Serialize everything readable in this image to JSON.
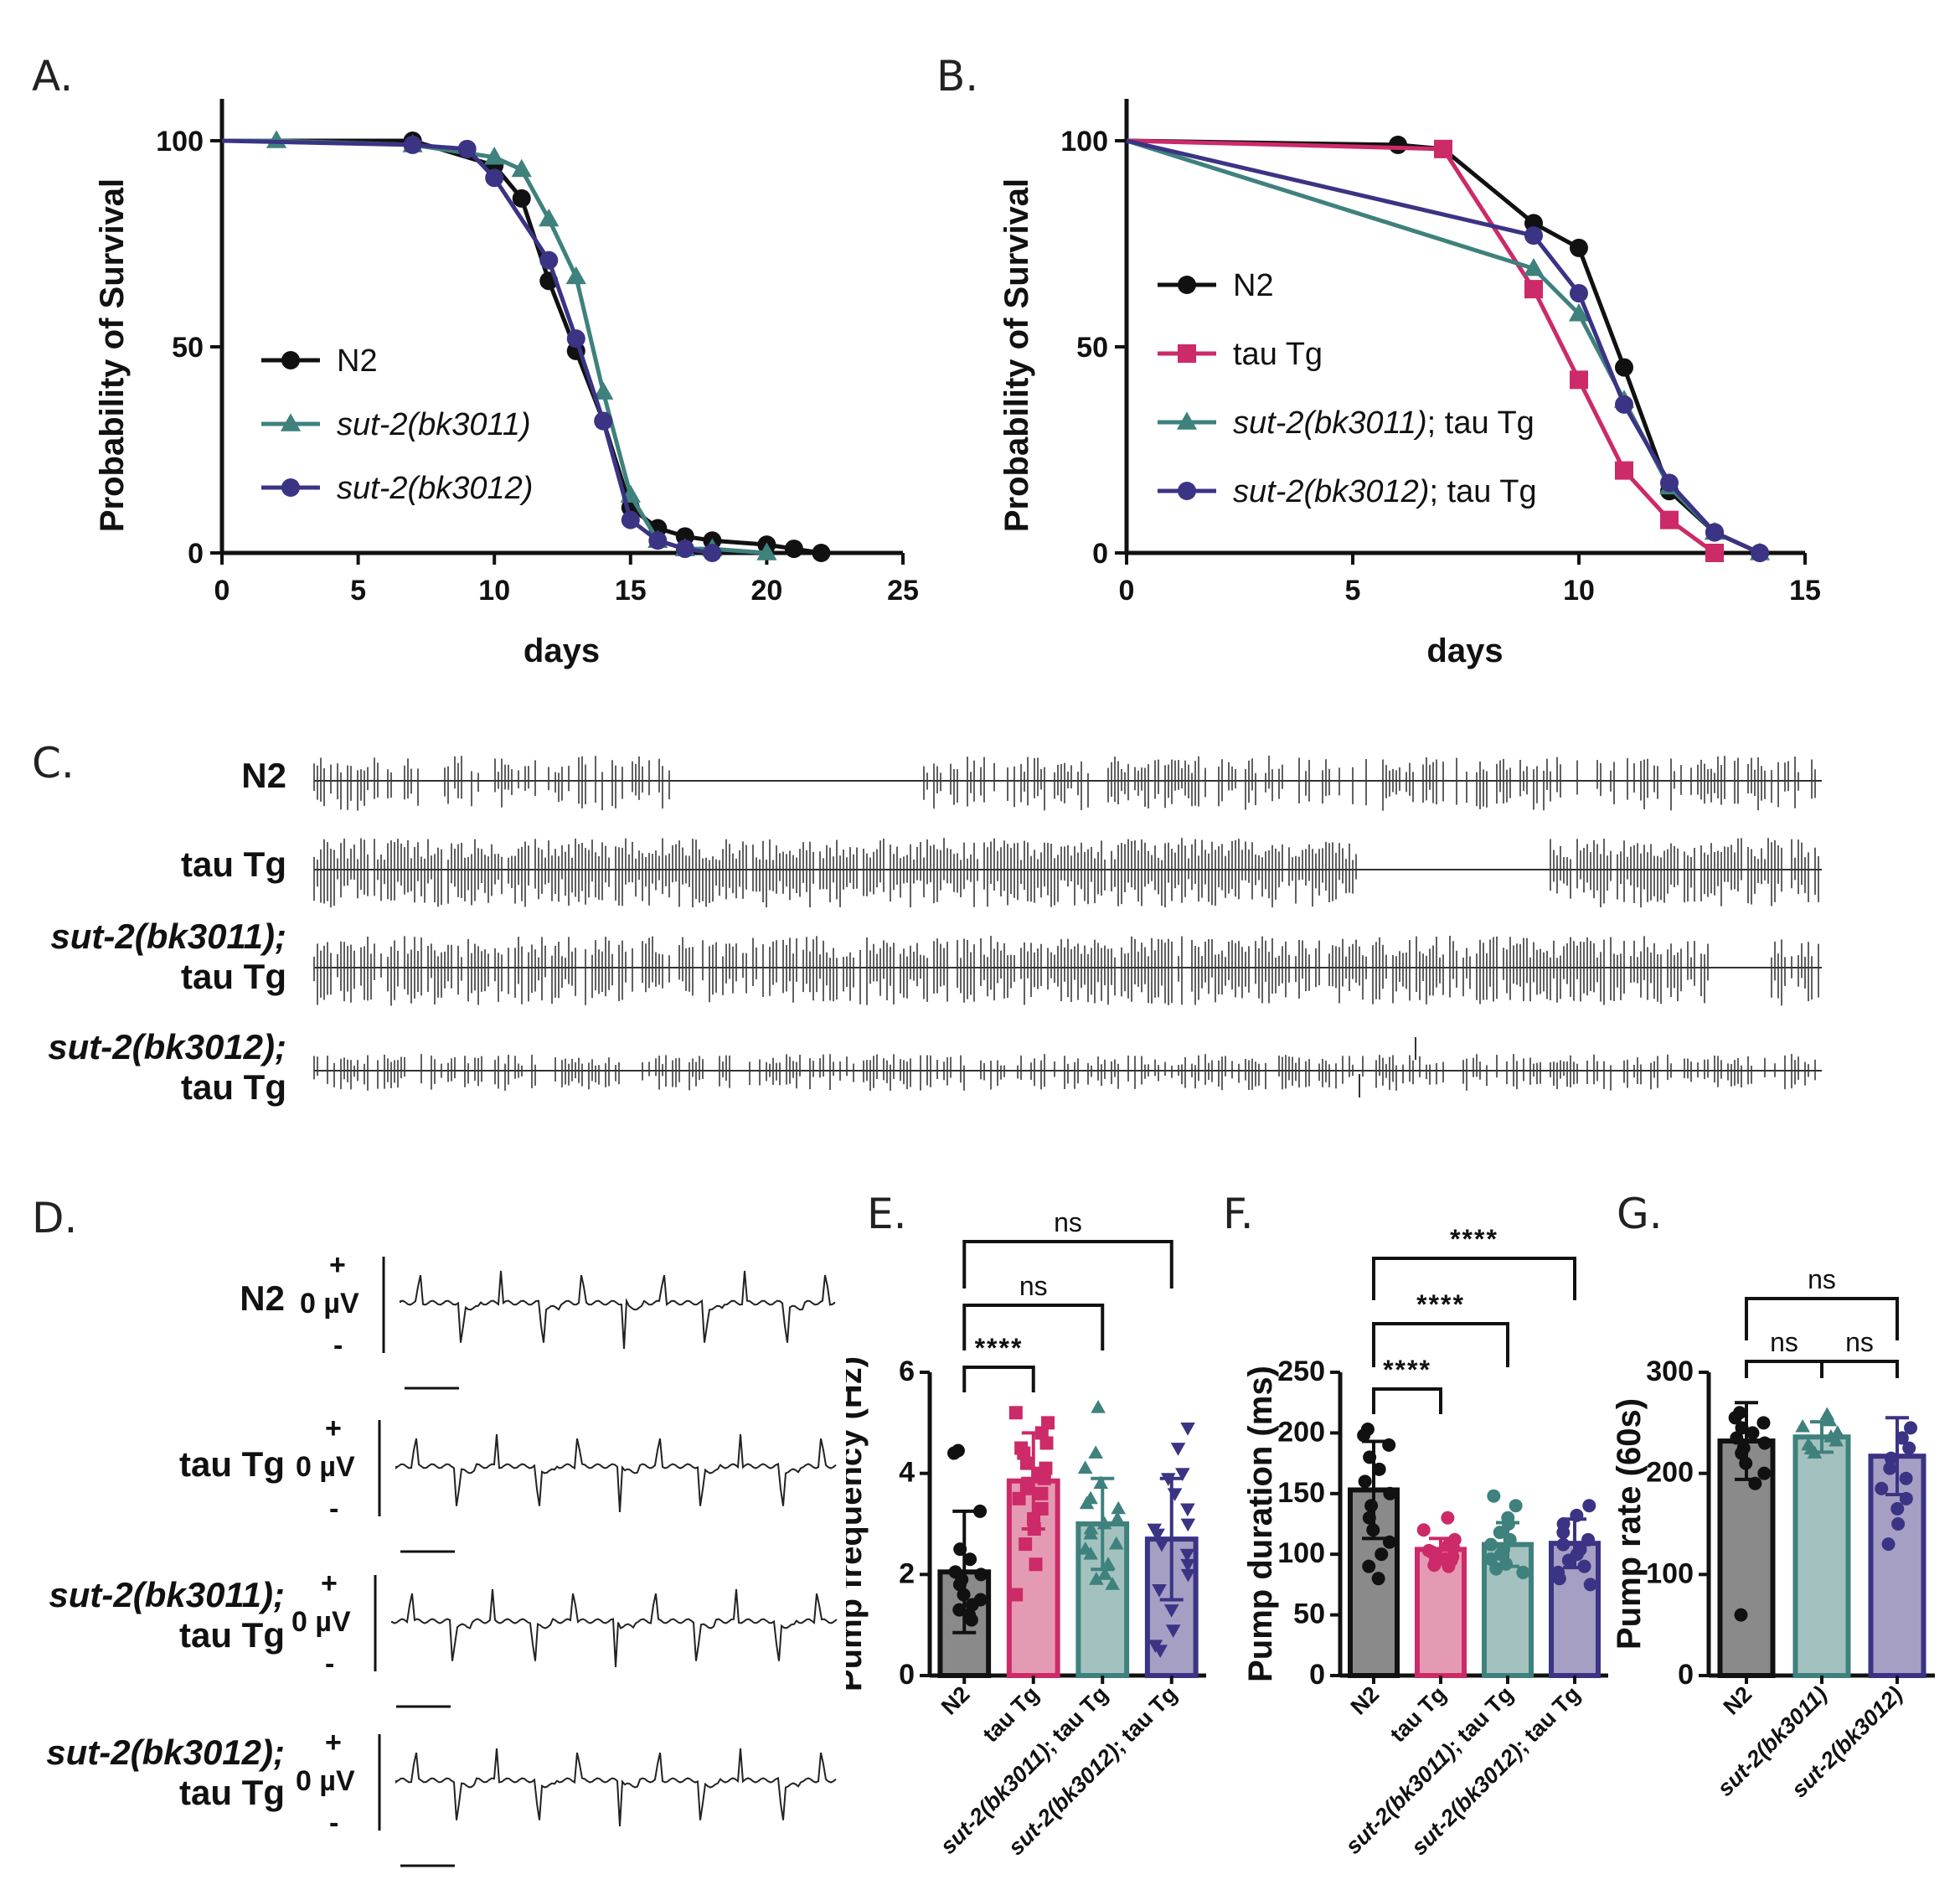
{
  "panel_labels": {
    "a": "A.",
    "b": "B.",
    "c": "C.",
    "d": "D.",
    "e": "E.",
    "f": "F.",
    "g": "G."
  },
  "colors": {
    "N2": "#111111",
    "tauTg": "#cc2a68",
    "bk3011": "#3e817d",
    "bk3012": "#3b3383",
    "tauTg_light": "#e59ab3",
    "bk3011_light": "#a3c2bf",
    "bk3012_light": "#a59fc4",
    "N2_light": "#8a8a8a"
  },
  "chart_data": [
    {
      "id": "A",
      "type": "line",
      "xlabel": "days",
      "ylabel": "Probability of Survival",
      "xlim": [
        0,
        25
      ],
      "ylim": [
        0,
        100
      ],
      "xticks": [
        "0",
        "5",
        "10",
        "15",
        "20",
        "25"
      ],
      "yticks": [
        "0",
        "50",
        "100"
      ],
      "series": [
        {
          "name": "N2",
          "marker": "circle",
          "color": "#111111",
          "x": [
            0,
            7,
            10,
            11,
            12,
            13,
            14,
            15,
            16,
            17,
            18,
            20,
            21,
            22
          ],
          "y": [
            100,
            100,
            94,
            86,
            66,
            49,
            32,
            11,
            6,
            4,
            3,
            2,
            1,
            0
          ]
        },
        {
          "name": "sut-2(bk3011)",
          "marker": "triangle",
          "color": "#3e817d",
          "x": [
            0,
            2,
            7,
            10,
            11,
            12,
            13,
            14,
            15,
            16,
            17,
            18,
            20
          ],
          "y": [
            100,
            100,
            99,
            96,
            93,
            81,
            67,
            39,
            14,
            3,
            1,
            1,
            0
          ]
        },
        {
          "name": "sut-2(bk3012)",
          "marker": "circle",
          "color": "#3b3383",
          "x": [
            0,
            7,
            9,
            10,
            12,
            13,
            14,
            15,
            16,
            17,
            18
          ],
          "y": [
            100,
            99,
            98,
            91,
            71,
            52,
            32,
            8,
            3,
            1,
            0
          ]
        }
      ]
    },
    {
      "id": "B",
      "type": "line",
      "xlabel": "days",
      "ylabel": "Probability of Survival",
      "xlim": [
        0,
        15
      ],
      "ylim": [
        0,
        100
      ],
      "xticks": [
        "0",
        "5",
        "10",
        "15"
      ],
      "yticks": [
        "0",
        "50",
        "100"
      ],
      "series": [
        {
          "name": "N2",
          "marker": "circle",
          "color": "#111111",
          "x": [
            0,
            6,
            7,
            9,
            10,
            11,
            12,
            13,
            14
          ],
          "y": [
            100,
            99,
            98,
            80,
            74,
            45,
            15,
            5,
            0
          ]
        },
        {
          "name": "tau Tg",
          "marker": "square",
          "color": "#cc2a68",
          "x": [
            0,
            7,
            9,
            10,
            11,
            12,
            13
          ],
          "y": [
            100,
            98,
            64,
            42,
            20,
            8,
            0
          ]
        },
        {
          "name": "sut-2(bk3011); tau Tg",
          "marker": "triangle",
          "color": "#3e817d",
          "x": [
            0,
            9,
            10,
            11,
            12,
            13,
            14
          ],
          "y": [
            100,
            69,
            58,
            37,
            16,
            5,
            0
          ]
        },
        {
          "name": "sut-2(bk3012); tau Tg",
          "marker": "circle",
          "color": "#3b3383",
          "x": [
            0,
            9,
            10,
            11,
            12,
            13,
            14
          ],
          "y": [
            100,
            77,
            63,
            36,
            17,
            5,
            0
          ]
        }
      ]
    },
    {
      "id": "E",
      "type": "bar",
      "ylabel": "Pump frequency (Hz)",
      "ylim": [
        0,
        6
      ],
      "yticks": [
        "0",
        "2",
        "4",
        "6"
      ],
      "categories": [
        "N2",
        "tau Tg",
        "sut-2(bk3011); tau Tg",
        "sut-2(bk3012); tau Tg"
      ],
      "values": [
        2.05,
        3.85,
        3.0,
        2.7
      ],
      "sd": [
        1.2,
        0.95,
        0.9,
        1.2
      ],
      "points": [
        [
          4.45,
          4.4,
          3.25,
          2.5,
          2.3,
          2.05,
          2.0,
          1.9,
          1.8,
          1.6,
          1.5,
          1.4,
          1.3,
          1.2,
          1.1
        ],
        [
          5.2,
          5.0,
          4.8,
          4.6,
          4.5,
          4.4,
          4.2,
          4.1,
          4.0,
          3.9,
          3.8,
          3.7,
          3.6,
          3.5,
          3.3,
          3.1,
          2.9,
          2.6,
          2.2,
          1.6
        ],
        [
          5.3,
          4.4,
          4.1,
          3.8,
          3.5,
          3.3,
          3.1,
          3.0,
          2.9,
          2.8,
          2.6,
          2.4,
          2.2,
          2.0,
          1.9,
          1.8,
          2.5,
          3.4
        ],
        [
          4.9,
          4.5,
          4.0,
          3.6,
          3.3,
          3.0,
          2.8,
          2.6,
          2.4,
          2.2,
          2.0,
          1.7,
          1.3,
          0.9,
          0.6,
          0.5,
          3.9,
          2.9
        ]
      ],
      "markers": [
        "circle",
        "square",
        "triangle",
        "triangle-down"
      ],
      "comparisons": [
        {
          "from": 0,
          "to": 1,
          "label": "****"
        },
        {
          "from": 0,
          "to": 2,
          "label": "ns"
        },
        {
          "from": 0,
          "to": 3,
          "label": "ns"
        }
      ]
    },
    {
      "id": "F",
      "type": "bar",
      "ylabel": "Pump duration (ms)",
      "ylim": [
        0,
        250
      ],
      "yticks": [
        "0",
        "50",
        "100",
        "150",
        "200",
        "250"
      ],
      "categories": [
        "N2",
        "tau Tg",
        "sut-2(bk3011); tau Tg",
        "sut-2(bk3012); tau Tg"
      ],
      "values": [
        153,
        104,
        108,
        109
      ],
      "sd": [
        40,
        9,
        18,
        20
      ],
      "points": [
        [
          203,
          198,
          190,
          180,
          170,
          160,
          150,
          140,
          130,
          120,
          110,
          100,
          90,
          80
        ],
        [
          130,
          120,
          112,
          108,
          105,
          103,
          102,
          100,
          98,
          96,
          95,
          93,
          91,
          90
        ],
        [
          148,
          140,
          130,
          125,
          118,
          112,
          108,
          104,
          100,
          96,
          92,
          88,
          85
        ],
        [
          140,
          132,
          125,
          118,
          112,
          108,
          104,
          100,
          95,
          90,
          85,
          80,
          75
        ]
      ],
      "markers": [
        "circle",
        "circle",
        "circle",
        "circle"
      ],
      "comparisons": [
        {
          "from": 0,
          "to": 1,
          "label": "****"
        },
        {
          "from": 0,
          "to": 2,
          "label": "****"
        },
        {
          "from": 0,
          "to": 3,
          "label": "****"
        }
      ]
    },
    {
      "id": "G",
      "type": "bar",
      "ylabel": "Pump rate (60s)",
      "ylim": [
        0,
        300
      ],
      "yticks": [
        "0",
        "100",
        "200",
        "300"
      ],
      "categories": [
        "N2",
        "sut-2(bk3011)",
        "sut-2(bk3012)"
      ],
      "values": [
        232,
        236,
        217
      ],
      "sd": [
        38,
        15,
        38
      ],
      "points": [
        [
          260,
          255,
          250,
          245,
          240,
          235,
          230,
          225,
          220,
          210,
          200,
          190,
          60
        ],
        [
          258,
          252,
          246,
          240,
          236,
          232,
          228,
          224,
          220
        ],
        [
          245,
          235,
          225,
          215,
          205,
          195,
          185,
          175,
          165,
          150,
          130
        ]
      ],
      "markers": [
        "circle",
        "triangle",
        "circle"
      ],
      "comparisons": [
        {
          "from": 0,
          "to": 1,
          "label": "ns"
        },
        {
          "from": 1,
          "to": 2,
          "label": "ns"
        },
        {
          "from": 0,
          "to": 2,
          "label": "ns"
        }
      ]
    }
  ],
  "traces_c": {
    "rows": [
      {
        "label1": "N2",
        "label2": ""
      },
      {
        "label1": "tau Tg",
        "label2": ""
      },
      {
        "label1": "sut-2(bk3011);",
        "label2": "tau Tg"
      },
      {
        "label1": "sut-2(bk3012);",
        "label2": "tau Tg"
      }
    ]
  },
  "traces_d": {
    "plus": "+",
    "zero": "0 µV",
    "minus": "-",
    "rows": [
      {
        "label1": "N2",
        "label2": ""
      },
      {
        "label1": "tau Tg",
        "label2": ""
      },
      {
        "label1": "sut-2(bk3011);",
        "label2": "tau Tg"
      },
      {
        "label1": "sut-2(bk3012);",
        "label2": "tau Tg"
      }
    ]
  }
}
